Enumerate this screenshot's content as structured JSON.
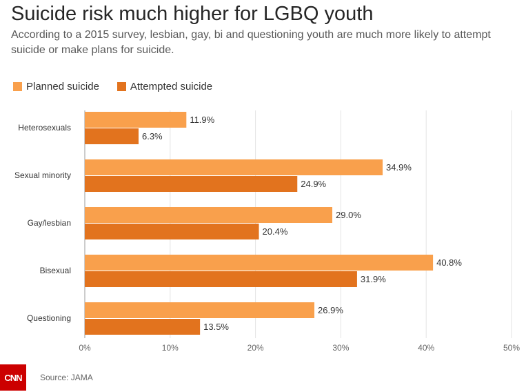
{
  "title": "Suicide risk much higher for LGBQ youth",
  "subtitle": "According to a 2015 survey, lesbian, gay, bi and questioning youth are much more likely to attempt suicide or make plans for suicide.",
  "footer": {
    "logo_text": "CNN",
    "source": "Source: JAMA"
  },
  "colors": {
    "planned": "#f9a04c",
    "attempted": "#e2731e",
    "grid": "#e3e3e3",
    "logo": "#cc0000"
  },
  "chart_data": {
    "type": "bar",
    "orientation": "horizontal",
    "categories": [
      "Heterosexuals",
      "Sexual minority",
      "Gay/lesbian",
      "Bisexual",
      "Questioning"
    ],
    "series": [
      {
        "name": "Planned suicide",
        "values": [
          11.9,
          34.9,
          29.0,
          40.8,
          26.9
        ]
      },
      {
        "name": "Attempted suicide",
        "values": [
          6.3,
          24.9,
          20.4,
          31.9,
          13.5
        ]
      }
    ],
    "value_labels": [
      [
        "11.9%",
        "34.9%",
        "29.0%",
        "40.8%",
        "26.9%"
      ],
      [
        "6.3%",
        "24.9%",
        "20.4%",
        "31.9%",
        "13.5%"
      ]
    ],
    "xlim": [
      0,
      50
    ],
    "xticks": [
      0,
      10,
      20,
      30,
      40,
      50
    ],
    "xtick_labels": [
      "0%",
      "10%",
      "20%",
      "30%",
      "40%",
      "50%"
    ],
    "grid": true,
    "legend_position": "top-left"
  }
}
